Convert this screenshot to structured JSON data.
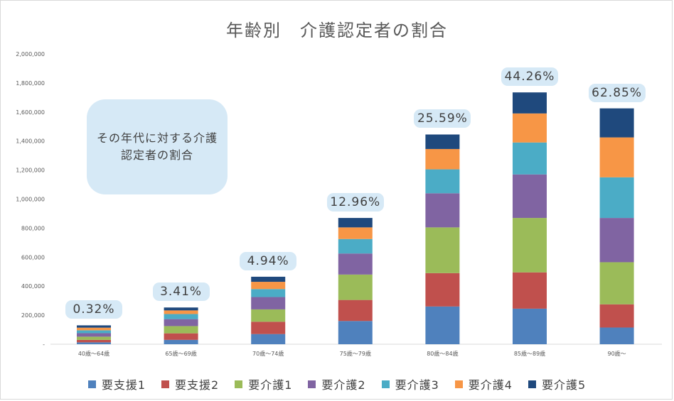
{
  "chart_data": {
    "type": "bar",
    "stacked": true,
    "title": "年齢別　介護認定者の割合",
    "categories": [
      "40歳〜64歳",
      "65歳〜69歳",
      "70歳〜74歳",
      "75歳〜79歳",
      "80歳〜84歳",
      "85歳〜89歳",
      "90歳〜"
    ],
    "ylim": [
      0,
      2000000
    ],
    "yticks": [
      "-",
      "200,000",
      "400,000",
      "600,000",
      "800,000",
      "1,000,000",
      "1,200,000",
      "1,400,000",
      "1,600,000",
      "1,800,000",
      "2,000,000"
    ],
    "grid": false,
    "legend_position": "bottom",
    "series": [
      {
        "name": "要支援1",
        "color": "#4f81bd",
        "values": [
          13000,
          30000,
          70000,
          160000,
          260000,
          245000,
          115000
        ]
      },
      {
        "name": "要支援2",
        "color": "#c0504d",
        "values": [
          17000,
          45000,
          85000,
          145000,
          230000,
          250000,
          160000
        ]
      },
      {
        "name": "要介護1",
        "color": "#9bbb59",
        "values": [
          22000,
          50000,
          85000,
          175000,
          315000,
          375000,
          290000
        ]
      },
      {
        "name": "要介護2",
        "color": "#8064a2",
        "values": [
          24000,
          48000,
          85000,
          145000,
          235000,
          300000,
          305000
        ]
      },
      {
        "name": "要介護3",
        "color": "#4bacc6",
        "values": [
          20000,
          35000,
          55000,
          100000,
          165000,
          220000,
          280000
        ]
      },
      {
        "name": "要介護4",
        "color": "#f79646",
        "values": [
          18000,
          25000,
          50000,
          80000,
          140000,
          200000,
          275000
        ]
      },
      {
        "name": "要介護5",
        "color": "#1f497d",
        "values": [
          16000,
          20000,
          35000,
          65000,
          100000,
          145000,
          200000
        ]
      }
    ],
    "data_labels": [
      "0.32%",
      "3.41%",
      "4.94%",
      "12.96%",
      "25.59%",
      "44.26%",
      "62.85%"
    ],
    "annotation": "その年代に対する介護認定者の割合"
  }
}
